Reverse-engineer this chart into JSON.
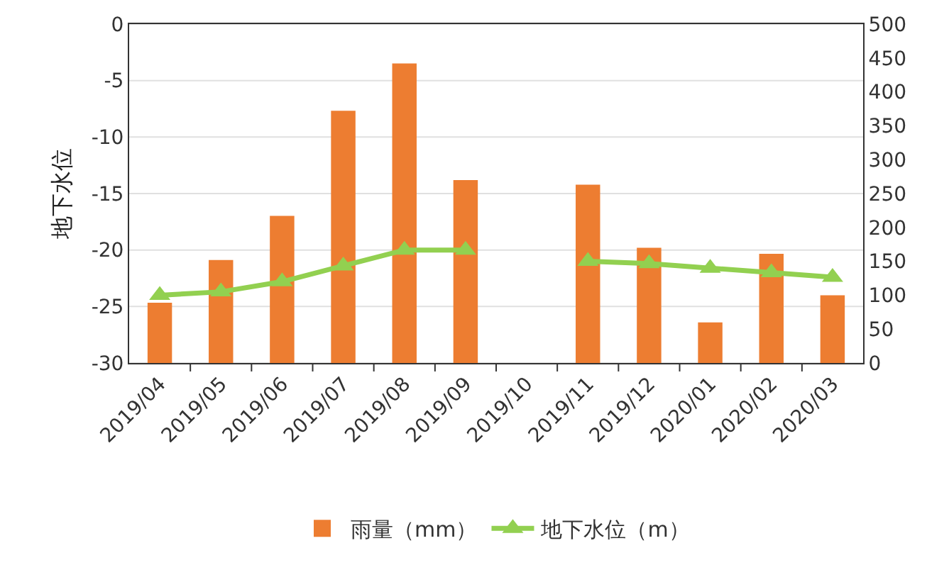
{
  "chart_data": {
    "type": "bar",
    "ylabel": "地下水位",
    "categories": [
      "2019/04",
      "2019/05",
      "2019/06",
      "2019/07",
      "2019/08",
      "2019/09",
      "2019/10",
      "2019/11",
      "2019/12",
      "2020/01",
      "2020/02",
      "2020/03"
    ],
    "series": [
      {
        "name": "雨量（mm）",
        "axis": "y2",
        "color": "#ed7d31",
        "values": [
          89,
          152,
          217,
          372,
          442,
          270,
          null,
          263,
          170,
          60,
          161,
          100
        ]
      },
      {
        "name": "地下水位（m）",
        "type": "line",
        "color": "#92d050",
        "marker": "triangle",
        "values": [
          -24.0,
          -23.7,
          -22.8,
          -21.4,
          -20.0,
          -20.0,
          null,
          -21.0,
          -21.2,
          -21.6,
          -22.0,
          -22.4
        ]
      }
    ],
    "ylim": [
      -30,
      0
    ],
    "yticks": [
      -30,
      -25,
      -20,
      -15,
      -10,
      -5,
      0
    ],
    "y2lim": [
      0,
      500
    ],
    "y2ticks": [
      0,
      50,
      100,
      150,
      200,
      250,
      300,
      350,
      400,
      450,
      500
    ],
    "grid": "y",
    "legend": "bottom"
  }
}
